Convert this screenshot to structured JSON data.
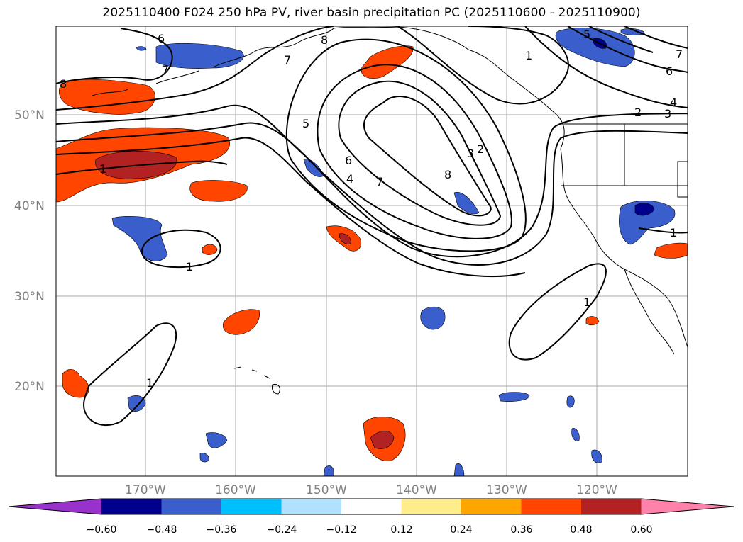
{
  "title": "2025110400 F024 250 hPa PV, river basin precipitation PC (2025110600 - 2025110900)",
  "map": {
    "lat_labels": [
      "50°N",
      "40°N",
      "30°N",
      "20°N"
    ],
    "lon_labels": [
      "170°W",
      "160°W",
      "150°W",
      "140°W",
      "130°W",
      "120°W"
    ]
  },
  "colorbar": {
    "ticks": [
      "−0.60",
      "−0.48",
      "−0.36",
      "−0.24",
      "−0.12",
      "0.12",
      "0.24",
      "0.36",
      "0.48",
      "0.60"
    ],
    "colors": [
      "#9932cc",
      "#00008b",
      "#3a5fcd",
      "#00bfff",
      "#b0e2ff",
      "#ffffff",
      "#ffec8b",
      "#ffa500",
      "#ff4500",
      "#b22222",
      "#ff82ab"
    ]
  },
  "contour_labels": {
    "c6_nw": "6",
    "c7_nw": "7",
    "c8_w": "8",
    "c8_top": "8",
    "c7_top": "7",
    "c1_w": "1",
    "c5_mid": "5",
    "c6_mid": "6",
    "c4_mid": "4",
    "c7_mid": "7",
    "c8_mid": "8",
    "c3_mid": "3",
    "c2_mid": "2",
    "c1_ak": "1",
    "c5_ne": "5",
    "c7_ne": "7",
    "c6_ne": "6",
    "c4_ne": "4",
    "c2_ne": "2",
    "c3_ne": "3",
    "c1_pac": "1",
    "c1_sw": "1",
    "c1_sub": "1",
    "c1_baja": "1"
  }
}
